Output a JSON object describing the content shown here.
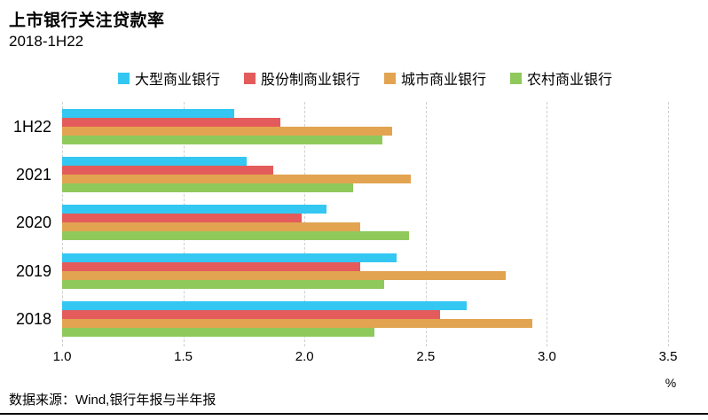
{
  "header": {
    "title": "上市银行关注贷款率",
    "subtitle": "2018-1H22"
  },
  "footer": {
    "source": "数据来源：Wind,银行年报与半年报"
  },
  "axis": {
    "unit": "%"
  },
  "colors": {
    "series_large": "#33C7F2",
    "series_joint_stock": "#E45B5B",
    "series_city": "#E2A450",
    "series_rural": "#8FC95C",
    "gridline": "#cfcfcf",
    "bottom_rule": "#000000"
  },
  "chart_data": {
    "type": "bar",
    "orientation": "horizontal",
    "title": "上市银行关注贷款率",
    "subtitle": "2018-1H22",
    "xlabel": "%",
    "ylabel": "",
    "xlim": [
      1.0,
      3.5
    ],
    "xticks": [
      "1.0",
      "1.5",
      "2.0",
      "2.5",
      "3.0",
      "3.5"
    ],
    "xtick_values": [
      1.0,
      1.5,
      2.0,
      2.5,
      3.0,
      3.5
    ],
    "grid": true,
    "legend_position": "top",
    "categories": [
      "1H22",
      "2021",
      "2020",
      "2019",
      "2018"
    ],
    "series": [
      {
        "name": "大型商业银行",
        "color": "#33C7F2",
        "values": [
          1.71,
          1.76,
          2.09,
          2.38,
          2.67
        ]
      },
      {
        "name": "股份制商业银行",
        "color": "#E45B5B",
        "values": [
          1.9,
          1.87,
          1.99,
          2.23,
          2.56
        ]
      },
      {
        "name": "城市商业银行",
        "color": "#E2A450",
        "values": [
          2.36,
          2.44,
          2.23,
          2.83,
          2.94
        ]
      },
      {
        "name": "农村商业银行",
        "color": "#8FC95C",
        "values": [
          2.32,
          2.2,
          2.43,
          2.33,
          2.29
        ]
      }
    ]
  }
}
